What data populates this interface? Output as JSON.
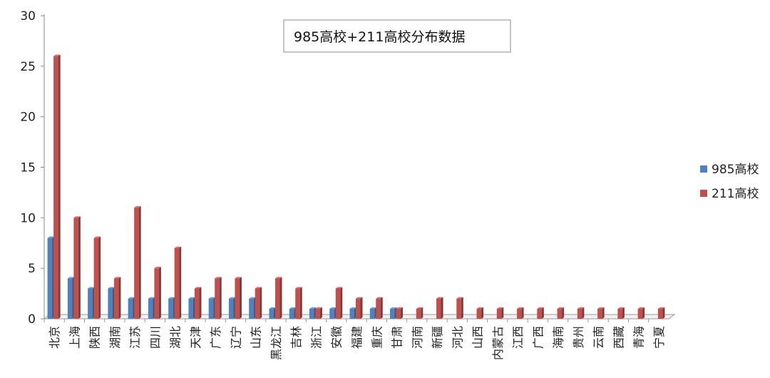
{
  "chart_data": {
    "type": "bar",
    "title": "985高校+211高校分布数据",
    "categories": [
      "北京",
      "上海",
      "陕西",
      "湖南",
      "江苏",
      "四川",
      "湖北",
      "天津",
      "广东",
      "辽宁",
      "山东",
      "黑龙江",
      "吉林",
      "浙江",
      "安徽",
      "福建",
      "重庆",
      "甘肃",
      "河南",
      "新疆",
      "河北",
      "山西",
      "内蒙古",
      "江西",
      "广西",
      "海南",
      "贵州",
      "云南",
      "西藏",
      "青海",
      "宁夏"
    ],
    "series": [
      {
        "name": "985高校",
        "color": "#4f81bd",
        "values": [
          8,
          4,
          3,
          3,
          2,
          2,
          2,
          2,
          2,
          2,
          2,
          1,
          1,
          1,
          1,
          1,
          1,
          1,
          0,
          0,
          0,
          0,
          0,
          0,
          0,
          0,
          0,
          0,
          0,
          0,
          0
        ]
      },
      {
        "name": "211高校",
        "color": "#c0504d",
        "values": [
          26,
          10,
          8,
          4,
          11,
          5,
          7,
          3,
          4,
          4,
          3,
          4,
          3,
          1,
          3,
          2,
          2,
          1,
          1,
          2,
          2,
          1,
          1,
          1,
          1,
          1,
          1,
          1,
          1,
          1,
          1
        ]
      }
    ],
    "yticks": [
      "0",
      "5",
      "10",
      "15",
      "20",
      "25",
      "30"
    ],
    "ylim": [
      0,
      30
    ],
    "legend_position": "right",
    "grid": false
  }
}
